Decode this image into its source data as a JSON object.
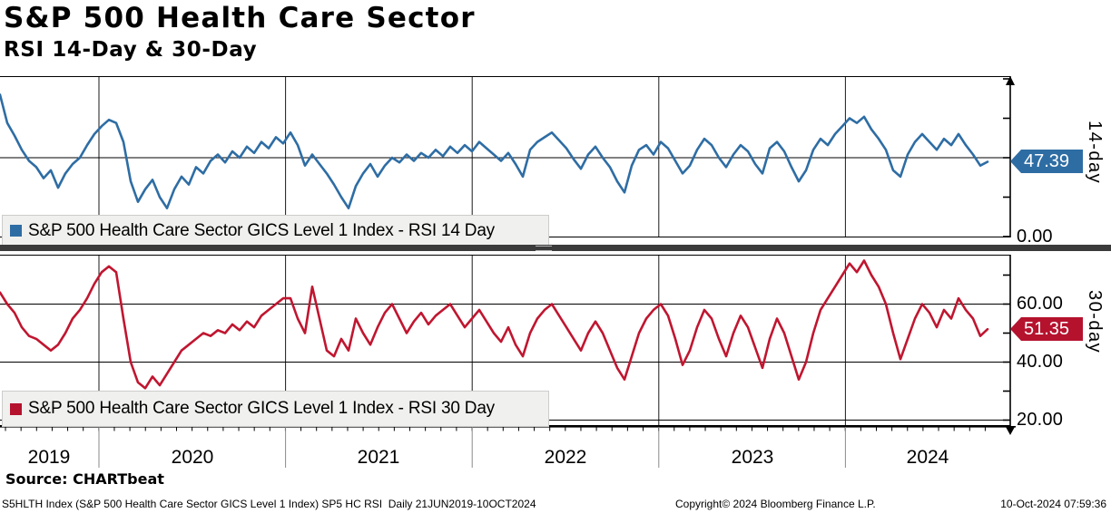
{
  "header": {
    "title": "S&P 500 Health Care Sector",
    "subtitle": "RSI 14-Day & 30-Day"
  },
  "panels": [
    {
      "side_label": "14-day",
      "badge_value": "47.39",
      "badge_color": "#2e6da4",
      "tick_labels": [
        "0.00"
      ],
      "legend": {
        "label": "S&P 500 Health Care Sector GICS Level 1 Index - RSI 14 Day",
        "swatch_color": "#2e6da4"
      }
    },
    {
      "side_label": "30-day",
      "badge_value": "51.35",
      "badge_color": "#b5122e",
      "tick_labels": [
        "60.00",
        "40.00",
        "20.00"
      ],
      "legend": {
        "label": "S&P 500 Health Care Sector GICS Level 1 Index - RSI 30 Day",
        "swatch_color": "#b5122e"
      }
    }
  ],
  "x_axis": {
    "years": [
      "2019",
      "2020",
      "2021",
      "2022",
      "2023",
      "2024"
    ]
  },
  "footer": {
    "source": "Source: CHARTbeat",
    "description": "S5HLTH Index (S&P 500 Health Care Sector GICS Level 1 Index) SP5 HC RSI  Daily 21JUN2019-10OCT2024",
    "copyright": "Copyright© 2024 Bloomberg Finance L.P.",
    "datetime": "10-Oct-2024 07:59:36"
  },
  "colors": {
    "blue_line": "#2e6da4",
    "red_line": "#c01630",
    "badge_blue": "#2e6da4",
    "badge_red": "#b5122e",
    "separator_bar": "#3b3b3b",
    "legend_bg": "#f0f0ee",
    "grid": "#000000"
  },
  "chart_data": [
    {
      "type": "line",
      "name": "S&P 500 Health Care Sector GICS Level 1 Index - RSI 14 Day",
      "pane": "top",
      "color": "#2e6da4",
      "x_start": "21JUN2019",
      "x_end": "10OCT2024",
      "x_start_year": 2019.472,
      "x_end_year": 2024.776,
      "points_evenly_spaced": true,
      "ylim": [
        0,
        101.7
      ],
      "yticks": [
        0,
        25,
        50,
        75,
        100
      ],
      "ytick_labels_visible": [
        "0.00"
      ],
      "gridlines": [
        50
      ],
      "legend_position": "bottom-left",
      "last_value": 47.39,
      "values": [
        90,
        72,
        64,
        55,
        48,
        44,
        37,
        42,
        31,
        40,
        46,
        50,
        58,
        65,
        70,
        74,
        72,
        60,
        35,
        22,
        30,
        36,
        25,
        18,
        30,
        38,
        33,
        44,
        40,
        48,
        52,
        47,
        54,
        50,
        57,
        53,
        60,
        56,
        63,
        59,
        66,
        58,
        45,
        52,
        46,
        40,
        33,
        25,
        18,
        32,
        40,
        46,
        38,
        45,
        50,
        47,
        52,
        48,
        53,
        50,
        55,
        51,
        57,
        53,
        58,
        54,
        60,
        56,
        52,
        48,
        53,
        46,
        38,
        55,
        60,
        63,
        66,
        61,
        56,
        49,
        43,
        52,
        57,
        50,
        44,
        35,
        28,
        45,
        55,
        58,
        52,
        60,
        56,
        48,
        40,
        45,
        55,
        62,
        58,
        50,
        44,
        52,
        58,
        54,
        46,
        40,
        56,
        60,
        54,
        44,
        35,
        42,
        55,
        62,
        58,
        65,
        70,
        75,
        72,
        76,
        68,
        62,
        55,
        42,
        38,
        52,
        60,
        65,
        60,
        55,
        62,
        58,
        65,
        58,
        52,
        45,
        47.39
      ]
    },
    {
      "type": "line",
      "name": "S&P 500 Health Care Sector GICS Level 1 Index - RSI 30 Day",
      "pane": "bottom",
      "color": "#c01630",
      "x_start": "21JUN2019",
      "x_end": "10OCT2024",
      "x_start_year": 2019.472,
      "x_end_year": 2024.776,
      "points_evenly_spaced": true,
      "ylim": [
        18,
        76.5
      ],
      "yticks": [
        20,
        30,
        40,
        50,
        60,
        70
      ],
      "ytick_labels_visible": [
        "60.00",
        "40.00",
        "20.00"
      ],
      "gridlines": [
        60,
        40,
        20
      ],
      "legend_position": "bottom-left",
      "last_value": 51.35,
      "values": [
        64,
        60,
        57,
        52,
        49,
        48,
        46,
        44,
        46,
        50,
        55,
        58,
        62,
        67,
        71,
        73,
        71,
        55,
        40,
        33,
        31,
        35,
        32,
        36,
        40,
        44,
        46,
        48,
        50,
        49,
        51,
        50,
        53,
        51,
        54,
        52,
        56,
        58,
        60,
        62,
        62,
        55,
        50,
        66,
        55,
        44,
        42,
        48,
        44,
        55,
        50,
        46,
        52,
        57,
        60,
        55,
        50,
        54,
        57,
        53,
        56,
        58,
        60,
        56,
        52,
        55,
        58,
        54,
        50,
        47,
        52,
        46,
        42,
        50,
        55,
        58,
        60,
        56,
        52,
        48,
        44,
        50,
        54,
        50,
        44,
        38,
        34,
        42,
        50,
        55,
        58,
        60,
        56,
        48,
        39,
        44,
        52,
        58,
        55,
        48,
        42,
        50,
        56,
        52,
        45,
        38,
        48,
        55,
        50,
        42,
        34,
        40,
        50,
        58,
        62,
        66,
        70,
        74,
        71,
        75,
        70,
        66,
        60,
        50,
        41,
        48,
        55,
        60,
        57,
        52,
        58,
        55,
        62,
        58,
        55,
        49,
        51.35
      ]
    }
  ]
}
